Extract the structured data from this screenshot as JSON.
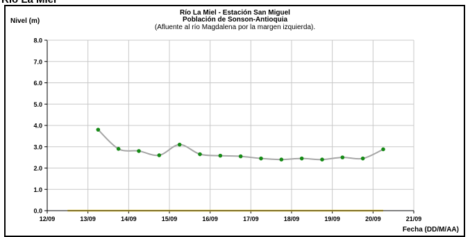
{
  "page": {
    "title": "Río La Miel"
  },
  "chart_data": {
    "type": "line",
    "title": "Río La Miel  - Estación San Miguel",
    "subtitle": "Población de Sonson-Antioquia",
    "note": "(Afluente al río Magdalena por la margen izquierda).",
    "ylabel": "Nivel (m)",
    "xlabel": "Fecha (DD/M/AA)",
    "ylim": [
      0,
      8
    ],
    "yticks": [
      "0.0",
      "1.0",
      "2.0",
      "3.0",
      "4.0",
      "5.0",
      "6.0",
      "7.0",
      "8.0"
    ],
    "xticks": [
      "12/09",
      "13/09",
      "14/09",
      "15/09",
      "16/09",
      "17/09",
      "18/09",
      "19/09",
      "20/09",
      "21/09"
    ],
    "xlim": [
      0,
      9
    ],
    "grid": true,
    "colors": {
      "line": "#a6a6a6",
      "points": "#168a16",
      "baseline": "#ffe14a"
    },
    "series": [
      {
        "x": [
          1.25,
          1.75,
          2.25,
          2.75,
          3.25,
          3.75,
          4.25,
          4.75,
          5.25,
          5.75,
          6.25,
          6.75,
          7.25,
          7.75,
          8.25
        ],
        "values": [
          3.8,
          2.9,
          2.8,
          2.6,
          3.1,
          2.65,
          2.58,
          2.55,
          2.45,
          2.4,
          2.45,
          2.4,
          2.5,
          2.45,
          2.88
        ]
      }
    ],
    "baseline": {
      "x": [
        0.5,
        8.25
      ],
      "value": 0.0
    }
  }
}
